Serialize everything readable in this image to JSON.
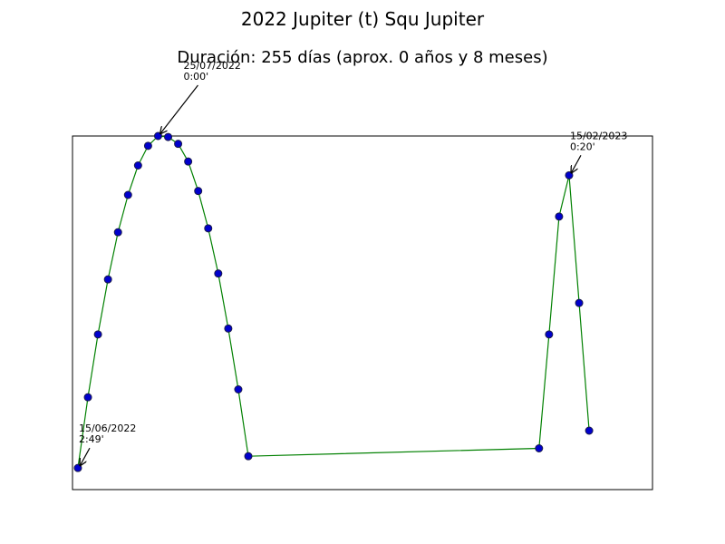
{
  "chart_data": {
    "type": "line",
    "title": "2022 Jupiter (t) Squ Jupiter",
    "subtitle": "Duración: 255 días (aprox. 0 años y 8 meses)",
    "x": [
      0,
      5,
      10,
      15,
      20,
      25,
      30,
      35,
      40,
      45,
      50,
      55,
      60,
      65,
      70,
      75,
      80,
      85,
      230,
      235,
      240,
      245,
      250,
      255
    ],
    "series": [
      {
        "color": "#008000",
        "marker_color": "#0000cd",
        "values": [
          -169,
          -133,
          -101,
          -73,
          -49,
          -30,
          -15,
          -5,
          0,
          -0.5,
          -4,
          -13,
          -28,
          -47,
          -70,
          -98,
          -129,
          -163,
          -159,
          -101,
          -41,
          -20,
          -85,
          -150
        ]
      }
    ],
    "xlim": [
      -2.7,
      286.6
    ],
    "ylim": [
      -180,
      0
    ],
    "annotations": [
      [
        "15/06/2022",
        "2:49'"
      ],
      [
        "25/07/2022",
        "0:00'"
      ],
      [
        "15/02/2023",
        "0:20'"
      ]
    ]
  }
}
